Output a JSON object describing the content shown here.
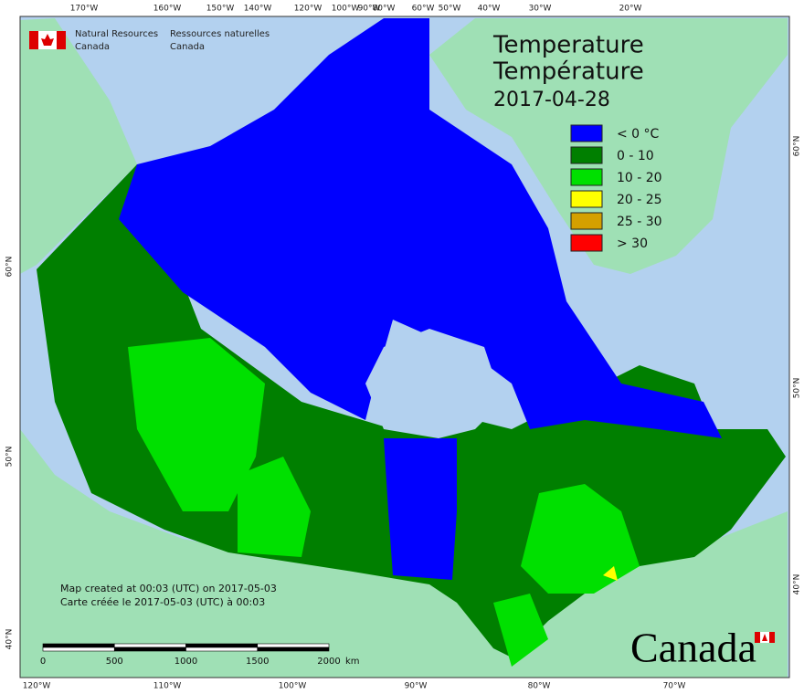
{
  "header": {
    "title_en": "Temperature",
    "title_fr": "Température",
    "date": "2017-04-28"
  },
  "agency": {
    "en": [
      "Natural Resources",
      "Canada"
    ],
    "fr": [
      "Ressources naturelles",
      "Canada"
    ]
  },
  "legend": [
    {
      "label": "< 0 °C",
      "color": "#0000ff"
    },
    {
      "label": "0 - 10",
      "color": "#007f00"
    },
    {
      "label": "10 - 20",
      "color": "#00e000"
    },
    {
      "label": "20 - 25",
      "color": "#ffff00"
    },
    {
      "label": "25 - 30",
      "color": "#d4a000"
    },
    {
      "label": "> 30",
      "color": "#ff0000"
    }
  ],
  "graticule": {
    "top": [
      "170°W",
      "160°W",
      "150°W",
      "140°W",
      "120°W",
      "100°W",
      "90°W",
      "80°W",
      "60°W",
      "50°W",
      "40°W",
      "30°W",
      "20°W"
    ],
    "bottom": [
      "120°W",
      "110°W",
      "100°W",
      "90°W",
      "80°W",
      "70°W"
    ],
    "left": [
      "60°N",
      "50°N",
      "40°N"
    ],
    "right": [
      "60°N",
      "50°N",
      "40°N"
    ]
  },
  "scale_bar": {
    "ticks": [
      0,
      500,
      1000,
      1500,
      2000
    ],
    "unit": "km"
  },
  "credits": [
    "Map created at 00:03 (UTC) on 2017-05-03",
    "Carte créée le 2017-05-03 (UTC) à 00:03"
  ],
  "wordmark": "Canada"
}
